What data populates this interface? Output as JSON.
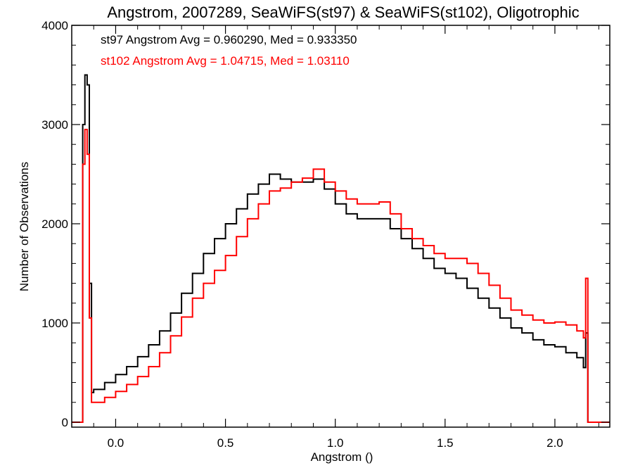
{
  "chart_data": {
    "type": "line",
    "title": "Angstrom, 2007289, SeaWiFS(st97) & SeaWiFS(st102), Oligotrophic",
    "xlabel": "Angstrom ()",
    "ylabel": "Number of Observations",
    "xlim": [
      -0.2,
      2.25
    ],
    "ylim": [
      -50,
      4000
    ],
    "xticks": [
      0.0,
      0.5,
      1.0,
      1.5,
      2.0
    ],
    "xtick_labels": [
      "0.0",
      "0.5",
      "1.0",
      "1.5",
      "2.0"
    ],
    "yticks": [
      0,
      1000,
      2000,
      3000,
      4000
    ],
    "ytick_labels": [
      "0",
      "1000",
      "2000",
      "3000",
      "4000"
    ],
    "grid": false,
    "step": true,
    "legend_position": "top-left",
    "legend": [
      "st97 Angstrom Avg = 0.960290, Med = 0.933350",
      "st102 Angstrom Avg = 1.04715, Med = 1.03110"
    ],
    "series": [
      {
        "color": "#000000",
        "x": [
          -0.2,
          -0.18,
          -0.16,
          -0.15,
          -0.14,
          -0.13,
          -0.12,
          -0.11,
          -0.1,
          -0.05,
          0.0,
          0.05,
          0.1,
          0.15,
          0.2,
          0.25,
          0.3,
          0.35,
          0.4,
          0.45,
          0.5,
          0.55,
          0.6,
          0.65,
          0.7,
          0.75,
          0.8,
          0.85,
          0.9,
          0.95,
          1.0,
          1.05,
          1.1,
          1.15,
          1.2,
          1.25,
          1.3,
          1.35,
          1.4,
          1.45,
          1.5,
          1.55,
          1.6,
          1.65,
          1.7,
          1.75,
          1.8,
          1.85,
          1.9,
          1.95,
          2.0,
          2.05,
          2.1,
          2.13,
          2.14,
          2.15,
          2.25
        ],
        "y": [
          0,
          0,
          0,
          3000,
          3500,
          3400,
          1400,
          300,
          330,
          400,
          480,
          560,
          660,
          780,
          920,
          1100,
          1300,
          1500,
          1700,
          1850,
          2000,
          2150,
          2300,
          2400,
          2500,
          2450,
          2420,
          2420,
          2450,
          2350,
          2200,
          2100,
          2050,
          2050,
          2050,
          1950,
          1850,
          1750,
          1650,
          1550,
          1500,
          1450,
          1350,
          1250,
          1150,
          1050,
          950,
          900,
          830,
          780,
          760,
          700,
          650,
          550,
          900,
          0,
          0
        ]
      },
      {
        "color": "#ff0000",
        "x": [
          -0.2,
          -0.18,
          -0.16,
          -0.15,
          -0.14,
          -0.13,
          -0.12,
          -0.11,
          -0.1,
          -0.05,
          0.0,
          0.05,
          0.1,
          0.15,
          0.2,
          0.25,
          0.3,
          0.35,
          0.4,
          0.45,
          0.5,
          0.55,
          0.6,
          0.65,
          0.7,
          0.75,
          0.8,
          0.85,
          0.9,
          0.95,
          1.0,
          1.05,
          1.1,
          1.15,
          1.2,
          1.25,
          1.3,
          1.35,
          1.4,
          1.45,
          1.5,
          1.55,
          1.6,
          1.65,
          1.7,
          1.75,
          1.8,
          1.85,
          1.9,
          1.95,
          2.0,
          2.05,
          2.1,
          2.13,
          2.14,
          2.15,
          2.25
        ],
        "y": [
          0,
          0,
          0,
          2600,
          2950,
          2700,
          1050,
          200,
          200,
          250,
          310,
          380,
          460,
          560,
          700,
          870,
          1060,
          1250,
          1400,
          1530,
          1680,
          1870,
          2050,
          2200,
          2330,
          2360,
          2420,
          2460,
          2550,
          2420,
          2330,
          2250,
          2200,
          2200,
          2220,
          2100,
          1950,
          1850,
          1780,
          1700,
          1650,
          1650,
          1600,
          1500,
          1380,
          1250,
          1130,
          1080,
          1030,
          1000,
          1010,
          980,
          920,
          850,
          1450,
          0,
          0
        ]
      }
    ]
  }
}
